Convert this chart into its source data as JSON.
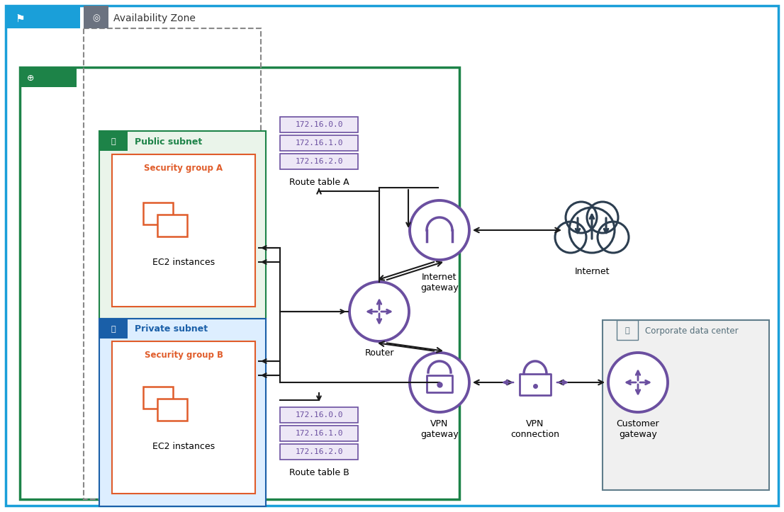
{
  "fig_width": 11.06,
  "fig_height": 7.23,
  "colors": {
    "region_border": "#1a9fd9",
    "vpc_border": "#1d8348",
    "avail_zone_border": "#888888",
    "public_subnet_bg": "#eaf4ea",
    "public_subnet_border": "#1d8348",
    "private_subnet_bg": "#ddeeff",
    "private_subnet_border": "#1a5fa8",
    "security_group_border": "#e05c2a",
    "security_group_label": "#e05c2a",
    "ec2_color": "#e05c2a",
    "purple": "#6b4fa0",
    "arrow_color": "#1a1a1a",
    "route_table_bg": "#ede7f6",
    "route_table_border": "#6b4fa0",
    "route_table_text": "#6b4fa0",
    "internet_cloud": "#2c3e50",
    "corp_dc_border": "#607d8b",
    "corp_dc_bg": "#f0f0f0",
    "corp_dc_label": "#546e7a",
    "region_tab_bg": "#1a9fd9",
    "region_label": "#1a9fd9",
    "avail_tab_bg": "#6b7280",
    "vpc_tab_bg": "#1d8348",
    "vpc_label": "#1d8348",
    "public_tab_bg": "#1d8348",
    "public_label": "#1d8348",
    "private_tab_bg": "#1a5fa8",
    "private_label": "#1a5fa8"
  },
  "route_table_a": [
    "172.16.0.0",
    "172.16.1.0",
    "172.16.2.0"
  ],
  "route_table_b": [
    "172.16.0.0",
    "172.16.1.0",
    "172.16.2.0"
  ]
}
